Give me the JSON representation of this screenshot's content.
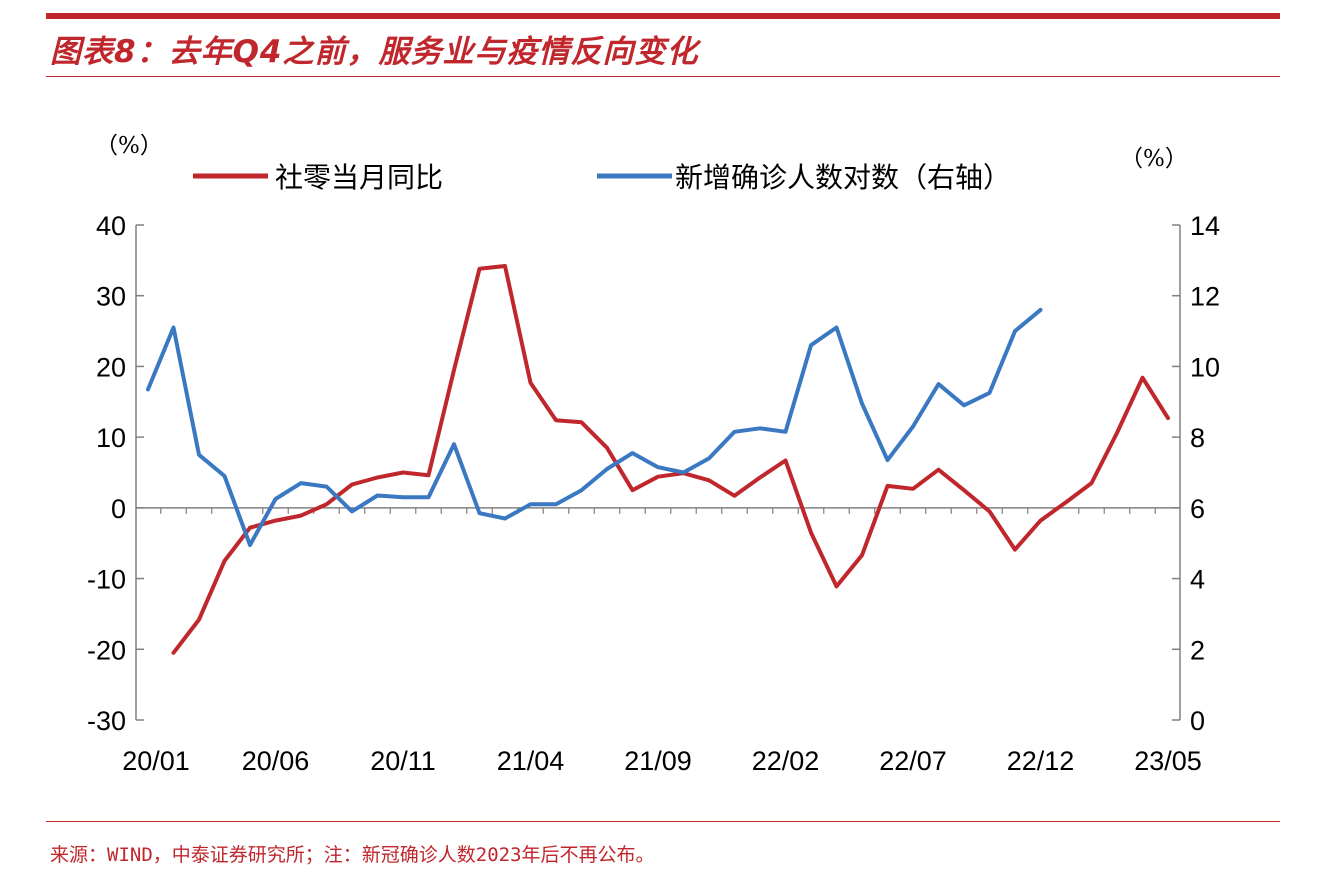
{
  "title": "图表8：去年Q4之前，服务业与疫情反向变化",
  "source": "来源：WIND，中泰证券研究所；注：新冠确诊人数2023年后不再公布。",
  "chart_data": {
    "type": "line",
    "left_unit": "（%）",
    "right_unit": "（%）",
    "x": [
      "20/01",
      "20/02",
      "20/03",
      "20/04",
      "20/05",
      "20/06",
      "20/07",
      "20/08",
      "20/09",
      "20/10",
      "20/11",
      "20/12",
      "21/01",
      "21/02",
      "21/03",
      "21/04",
      "21/05",
      "21/06",
      "21/07",
      "21/08",
      "21/09",
      "21/10",
      "21/11",
      "21/12",
      "22/01",
      "22/02",
      "22/03",
      "22/04",
      "22/05",
      "22/06",
      "22/07",
      "22/08",
      "22/09",
      "22/10",
      "22/11",
      "22/12",
      "23/01",
      "23/02",
      "23/03",
      "23/04",
      "23/05"
    ],
    "x_tick_labels": [
      "20/01",
      "20/06",
      "20/11",
      "21/04",
      "21/09",
      "22/02",
      "22/07",
      "22/12",
      "23/05"
    ],
    "left_axis": {
      "ylim": [
        -30,
        40
      ],
      "ticks": [
        40,
        30,
        20,
        10,
        0,
        -10,
        -20,
        -30
      ]
    },
    "right_axis": {
      "ylim": [
        0,
        14
      ],
      "ticks": [
        14,
        12,
        10,
        8,
        6,
        4,
        2,
        0
      ]
    },
    "legend_position": "top",
    "series": [
      {
        "name": "社零当月同比",
        "axis": "left",
        "color": "#c0272d",
        "values": [
          null,
          -20.5,
          -15.8,
          -7.5,
          -2.8,
          -1.8,
          -1.1,
          0.5,
          3.3,
          4.3,
          5.0,
          4.6,
          19.5,
          33.8,
          34.2,
          17.7,
          12.4,
          12.1,
          8.5,
          2.5,
          4.4,
          4.9,
          3.9,
          1.7,
          4.3,
          6.7,
          -3.5,
          -11.1,
          -6.7,
          3.1,
          2.7,
          5.4,
          2.5,
          -0.5,
          -5.9,
          -1.8,
          0.8,
          3.5,
          10.6,
          18.4,
          12.7
        ]
      },
      {
        "name": "新增确诊人数对数（右轴）",
        "axis": "right",
        "color": "#3a78c2",
        "values": [
          9.35,
          11.1,
          7.5,
          6.9,
          4.95,
          6.25,
          6.7,
          6.6,
          5.9,
          6.35,
          6.3,
          6.3,
          7.8,
          5.85,
          5.7,
          6.1,
          6.1,
          6.5,
          7.1,
          7.55,
          7.15,
          7.0,
          7.4,
          8.15,
          8.25,
          8.15,
          10.6,
          11.1,
          8.95,
          7.35,
          8.3,
          9.5,
          8.9,
          9.25,
          11.0,
          11.6,
          null,
          null,
          null,
          null,
          null
        ]
      }
    ]
  }
}
